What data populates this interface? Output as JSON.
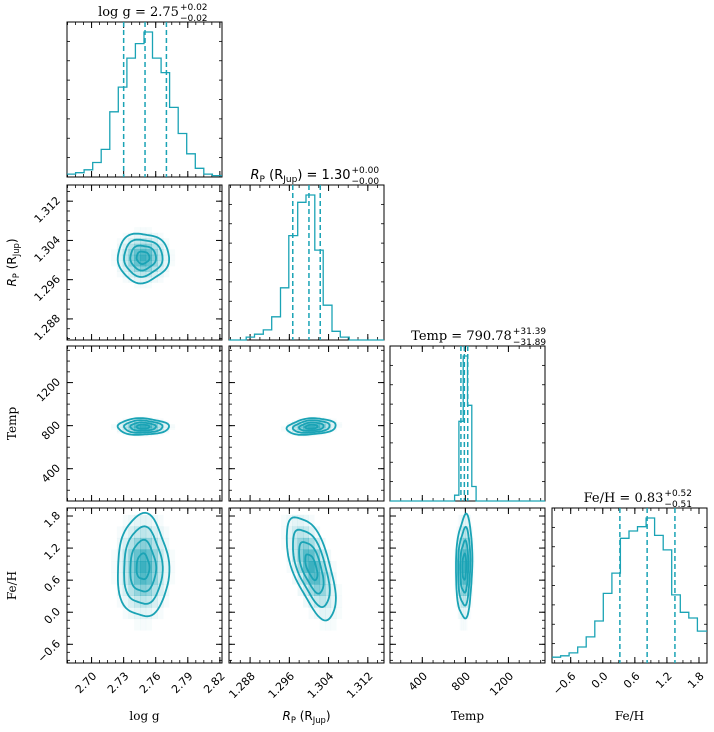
{
  "chart_data": {
    "type": "corner",
    "color": "#1aa3b5",
    "parameters": [
      {
        "id": "logg",
        "label": "log g",
        "range": [
          2.677,
          2.822
        ],
        "ticks": [
          2.7,
          2.73,
          2.76,
          2.79,
          2.82
        ],
        "tick_labels": [
          "2.70",
          "2.73",
          "2.76",
          "2.79",
          "2.82"
        ],
        "median": 2.75,
        "q16": 2.73,
        "q84": 2.77
      },
      {
        "id": "rp",
        "label": "R_P (R_Jup)",
        "range": [
          1.2837,
          1.3153
        ],
        "ticks": [
          1.288,
          1.296,
          1.304,
          1.312
        ],
        "tick_labels": [
          "1.288",
          "1.296",
          "1.304",
          "1.312"
        ],
        "median": 1.3,
        "q16": 1.2967,
        "q84": 1.3023
      },
      {
        "id": "temp",
        "label": "Temp",
        "range": [
          100,
          1540
        ],
        "ticks": [
          400,
          800,
          1200
        ],
        "tick_labels": [
          "400",
          "800",
          "1200"
        ],
        "median": 790.78,
        "q16": 758.89,
        "q84": 822.17
      },
      {
        "id": "feh",
        "label": "Fe/H",
        "range": [
          -0.95,
          1.95
        ],
        "ticks": [
          -0.6,
          0.0,
          0.6,
          1.2,
          1.8
        ],
        "tick_labels": [
          "−0.6",
          "0.0",
          "0.6",
          "1.2",
          "1.8"
        ],
        "median": 0.83,
        "q16": 0.32,
        "q84": 1.35
      }
    ],
    "titles": [
      {
        "name": "log g",
        "value": "2.75",
        "plus": "+0.02",
        "minus": "−0.02"
      },
      {
        "name": "R_P (R_Jup)",
        "value": "1.30",
        "plus": "+0.00",
        "minus": "−0.00"
      },
      {
        "name": "Temp",
        "value": "790.78",
        "plus": "+31.39",
        "minus": "−31.89"
      },
      {
        "name": "Fe/H",
        "value": "0.83",
        "plus": "+0.52",
        "minus": "−0.51"
      }
    ],
    "histograms": [
      {
        "bin_edges": [
          2.677,
          2.685,
          2.693,
          2.701,
          2.709,
          2.717,
          2.725,
          2.733,
          2.741,
          2.749,
          2.757,
          2.765,
          2.773,
          2.781,
          2.789,
          2.797,
          2.805,
          2.813,
          2.822
        ],
        "counts": [
          0.02,
          0.03,
          0.05,
          0.1,
          0.19,
          0.45,
          0.62,
          0.82,
          0.92,
          1.0,
          0.82,
          0.72,
          0.48,
          0.3,
          0.16,
          0.06,
          0.02,
          0.01
        ]
      },
      {
        "bin_edges": [
          1.2837,
          1.2854,
          1.2872,
          1.2889,
          1.2907,
          1.2924,
          1.2942,
          1.2959,
          1.2977,
          1.2994,
          1.3012,
          1.3029,
          1.3047,
          1.3064,
          1.3082,
          1.3099,
          1.3117,
          1.3134,
          1.3153
        ],
        "counts": [
          0.0,
          0.0,
          0.02,
          0.04,
          0.07,
          0.16,
          0.36,
          0.72,
          0.95,
          1.0,
          0.62,
          0.24,
          0.06,
          0.02,
          0.0,
          0.0,
          0.0,
          0.0
        ]
      },
      {
        "bin_edges": [
          100,
          180,
          260,
          340,
          420,
          500,
          580,
          660,
          700,
          740,
          780,
          820,
          860,
          900,
          1000,
          1100,
          1200,
          1300,
          1540
        ],
        "counts": [
          0.0,
          0.0,
          0.0,
          0.0,
          0.0,
          0.0,
          0.0,
          0.0,
          0.04,
          0.55,
          1.0,
          0.66,
          0.1,
          0.0,
          0.0,
          0.0,
          0.0,
          0.0
        ]
      },
      {
        "bin_edges": [
          -0.95,
          -0.79,
          -0.63,
          -0.47,
          -0.31,
          -0.15,
          0.01,
          0.17,
          0.33,
          0.49,
          0.65,
          0.81,
          0.97,
          1.13,
          1.29,
          1.45,
          1.61,
          1.77,
          1.95
        ],
        "counts": [
          0.04,
          0.05,
          0.07,
          0.11,
          0.18,
          0.29,
          0.48,
          0.62,
          0.86,
          0.91,
          0.94,
          1.0,
          0.88,
          0.78,
          0.47,
          0.35,
          0.31,
          0.22
        ]
      }
    ],
    "pairs": [
      {
        "row": 1,
        "col": 0,
        "center": [
          2.748,
          1.3005
        ],
        "sigma": [
          0.012,
          0.0025
        ],
        "rho": 0.0
      },
      {
        "row": 2,
        "col": 0,
        "center": [
          2.748,
          790
        ],
        "sigma": [
          0.012,
          38
        ],
        "rho": 0.0
      },
      {
        "row": 2,
        "col": 1,
        "center": [
          1.3005,
          790
        ],
        "sigma": [
          0.0025,
          38
        ],
        "rho": 0.2
      },
      {
        "row": 3,
        "col": 0,
        "center": [
          2.748,
          0.85
        ],
        "sigma": [
          0.012,
          0.48
        ],
        "rho": 0.0
      },
      {
        "row": 3,
        "col": 1,
        "center": [
          1.3005,
          0.85
        ],
        "sigma": [
          0.0025,
          0.48
        ],
        "rho": -0.6
      },
      {
        "row": 3,
        "col": 2,
        "center": [
          790,
          0.85
        ],
        "sigma": [
          38,
          0.48
        ],
        "rho": 0.1
      }
    ]
  }
}
